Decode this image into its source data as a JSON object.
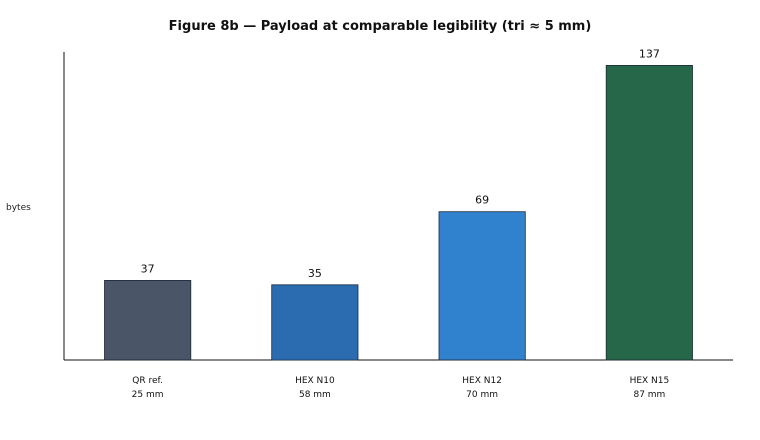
{
  "chart_data": {
    "type": "bar",
    "title": "Figure 8b — Payload at comparable legibility (tri ≈ 5 mm)",
    "ylabel": "bytes",
    "xlabel": "",
    "categories": [
      {
        "name": "QR ref.",
        "sub": "25 mm"
      },
      {
        "name": "HEX N10",
        "sub": "58 mm"
      },
      {
        "name": "HEX N12",
        "sub": "70 mm"
      },
      {
        "name": "HEX N15",
        "sub": "87 mm"
      }
    ],
    "values": [
      37,
      35,
      69,
      137
    ],
    "colors": [
      "#4a5568",
      "#2b6cb0",
      "#3182ce",
      "#276749"
    ],
    "ylim": [
      0,
      150
    ],
    "grid": false,
    "legend": "none"
  }
}
